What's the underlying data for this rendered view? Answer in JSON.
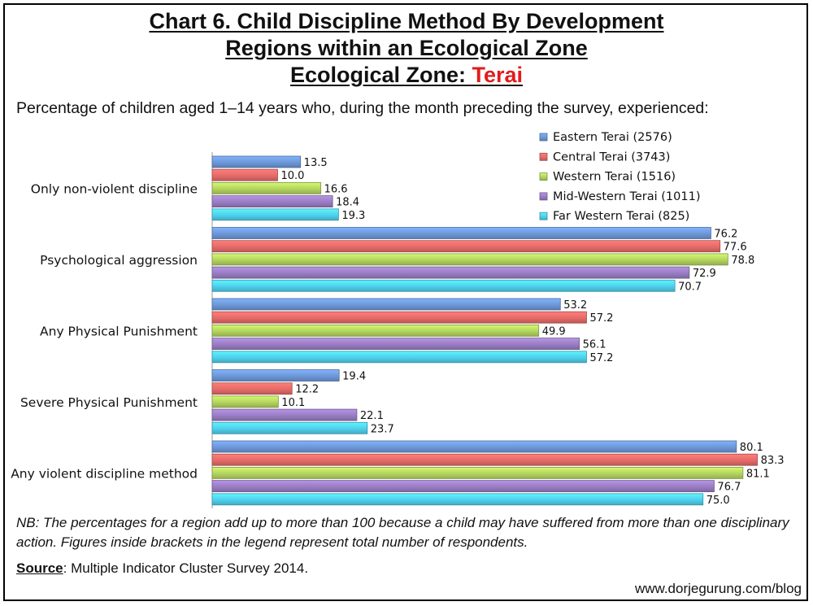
{
  "title": {
    "line1": "Chart 6. Child Discipline Method By Development",
    "line2": "Regions within an Ecological Zone",
    "line3_prefix": "Ecological Zone:",
    "line3_zone": "Terai"
  },
  "subtitle": "Percentage of children aged 1–14 years who, during the month preceding the survey, experienced:",
  "chart_data": {
    "type": "bar",
    "orientation": "horizontal",
    "categories": [
      "Only non-violent discipline",
      "Psychological aggression",
      "Any Physical Punishment",
      "Severe Physical Punishment",
      "Any violent discipline method"
    ],
    "series": [
      {
        "name": "Eastern Terai (2576)",
        "color": "#6d98d8",
        "values": [
          13.5,
          76.2,
          53.2,
          19.4,
          80.1
        ]
      },
      {
        "name": "Central Terai (3743)",
        "color": "#e56b68",
        "values": [
          10.0,
          77.6,
          57.2,
          12.2,
          83.3
        ]
      },
      {
        "name": "Western Terai (1516)",
        "color": "#b4d45f",
        "values": [
          16.6,
          78.8,
          49.9,
          10.1,
          81.1
        ]
      },
      {
        "name": "Mid-Western Terai (1011)",
        "color": "#9a7dc4",
        "values": [
          18.4,
          72.9,
          56.1,
          22.1,
          76.7
        ]
      },
      {
        "name": "Far Western Terai (825)",
        "color": "#4fd0ec",
        "values": [
          19.3,
          70.7,
          57.2,
          23.7,
          75.0
        ]
      }
    ],
    "xlim": [
      0,
      100
    ],
    "legend_position": "top-right",
    "grid": false,
    "data_labels": true
  },
  "note": "NB: The percentages for a region add up to more than 100 because a child may have suffered from more than one disciplinary action. Figures inside brackets in the legend represent total number of respondents.",
  "source": {
    "label": "Source",
    "text": ": Multiple Indicator Cluster Survey 2014."
  },
  "website": "www.dorjegurung.com/blog",
  "colors": {
    "title_accent": "#e21b1b"
  }
}
